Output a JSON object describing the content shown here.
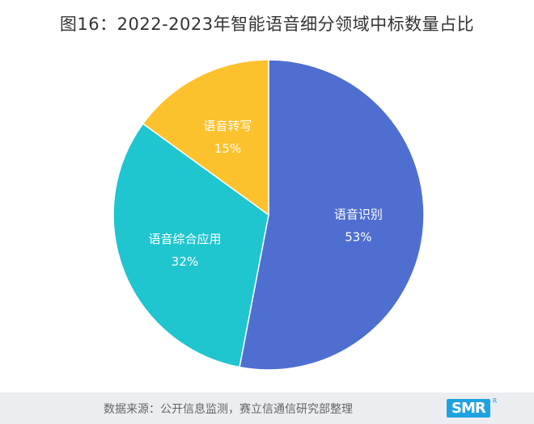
{
  "title": "图16：2022-2023年智能语音细分领域中标数量占比",
  "footer": {
    "source": "数据来源：公开信息监测，赛立信通信研究部整理",
    "logo_text": "SMR",
    "logo_sup": "R"
  },
  "chart_data": {
    "type": "pie",
    "title": "图16：2022-2023年智能语音细分领域中标数量占比",
    "slices": [
      {
        "label": "语音识别",
        "value": 53,
        "value_label": "53%",
        "color": "#4f6fd0"
      },
      {
        "label": "语音综合应用",
        "value": 32,
        "value_label": "32%",
        "color": "#1fc5cf"
      },
      {
        "label": "语音转写",
        "value": 15,
        "value_label": "15%",
        "color": "#fcc22d"
      }
    ],
    "start": "top",
    "direction": "clockwise",
    "legend": "none"
  }
}
